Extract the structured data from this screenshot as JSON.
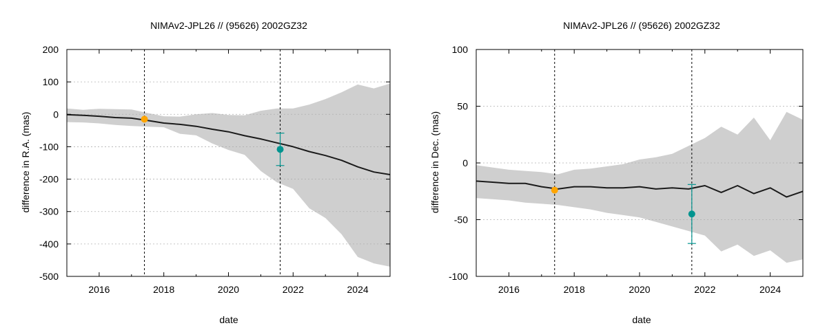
{
  "chart_data": [
    {
      "type": "line",
      "title": "NIMAv2-JPL26 // (95626) 2002GZ32",
      "xlabel": "date",
      "ylabel": "difference in R.A. (mas)",
      "xlim": [
        2015,
        2025
      ],
      "ylim": [
        -500,
        200
      ],
      "xticks": [
        2016,
        2018,
        2020,
        2022,
        2024
      ],
      "yticks": [
        -500,
        -400,
        -300,
        -200,
        -100,
        0,
        100,
        200
      ],
      "grid": true,
      "vlines": [
        2017.4,
        2021.6
      ],
      "series": [
        {
          "name": "nominal difference",
          "x": [
            2015.0,
            2015.5,
            2016.0,
            2016.5,
            2017.0,
            2017.5,
            2018.0,
            2018.5,
            2019.0,
            2019.5,
            2020.0,
            2020.5,
            2021.0,
            2021.5,
            2022.0,
            2022.5,
            2023.0,
            2023.5,
            2024.0,
            2024.5,
            2025.0
          ],
          "y": [
            -1,
            -3,
            -6,
            -10,
            -12,
            -19,
            -27,
            -31,
            -37,
            -46,
            -54,
            -66,
            -76,
            -88,
            -100,
            -115,
            -127,
            -142,
            -162,
            -178,
            -186
          ]
        },
        {
          "name": "uncertainty upper",
          "x": [
            2015.0,
            2015.5,
            2016.0,
            2016.5,
            2017.0,
            2017.5,
            2018.0,
            2018.5,
            2019.0,
            2019.5,
            2020.0,
            2020.5,
            2021.0,
            2021.5,
            2022.0,
            2022.5,
            2023.0,
            2023.5,
            2024.0,
            2024.5,
            2025.0
          ],
          "y": [
            18,
            14,
            17,
            16,
            15,
            4,
            -6,
            -7,
            0,
            4,
            -2,
            -3,
            11,
            18,
            18,
            30,
            47,
            68,
            92,
            80,
            95
          ]
        },
        {
          "name": "uncertainty lower",
          "x": [
            2015.0,
            2015.5,
            2016.0,
            2016.5,
            2017.0,
            2017.5,
            2018.0,
            2018.5,
            2019.0,
            2019.5,
            2020.0,
            2020.5,
            2021.0,
            2021.5,
            2022.0,
            2022.5,
            2023.0,
            2023.5,
            2024.0,
            2024.5,
            2025.0
          ],
          "y": [
            -24,
            -25,
            -28,
            -33,
            -36,
            -38,
            -40,
            -60,
            -65,
            -90,
            -110,
            -125,
            -175,
            -210,
            -230,
            -290,
            -320,
            -370,
            -440,
            -460,
            -470
          ]
        }
      ],
      "points": [
        {
          "name": "orange observation",
          "x": 2017.4,
          "y": -15,
          "color": "#ffa500"
        },
        {
          "name": "teal observation",
          "x": 2021.6,
          "y": -108,
          "yerr": 50,
          "color": "#00948f"
        }
      ]
    },
    {
      "type": "line",
      "title": "NIMAv2-JPL26 // (95626) 2002GZ32",
      "xlabel": "date",
      "ylabel": "difference in Dec. (mas)",
      "xlim": [
        2015,
        2025
      ],
      "ylim": [
        -100,
        100
      ],
      "xticks": [
        2016,
        2018,
        2020,
        2022,
        2024
      ],
      "yticks": [
        -100,
        -50,
        0,
        50,
        100
      ],
      "grid": true,
      "vlines": [
        2017.4,
        2021.6
      ],
      "series": [
        {
          "name": "nominal difference",
          "x": [
            2015.0,
            2015.5,
            2016.0,
            2016.5,
            2017.0,
            2017.5,
            2018.0,
            2018.5,
            2019.0,
            2019.5,
            2020.0,
            2020.5,
            2021.0,
            2021.5,
            2022.0,
            2022.5,
            2023.0,
            2023.5,
            2024.0,
            2024.5,
            2025.0
          ],
          "y": [
            -16,
            -17,
            -18,
            -18,
            -21,
            -23,
            -21,
            -21,
            -22,
            -22,
            -21,
            -23,
            -22,
            -23,
            -20,
            -26,
            -20,
            -27,
            -22,
            -30,
            -25
          ]
        },
        {
          "name": "uncertainty upper",
          "x": [
            2015.0,
            2015.5,
            2016.0,
            2016.5,
            2017.0,
            2017.5,
            2018.0,
            2018.5,
            2019.0,
            2019.5,
            2020.0,
            2020.5,
            2021.0,
            2021.5,
            2022.0,
            2022.5,
            2023.0,
            2023.5,
            2024.0,
            2024.5,
            2025.0
          ],
          "y": [
            -2,
            -4,
            -6,
            -7,
            -8,
            -10,
            -6,
            -5,
            -3,
            -1,
            3,
            5,
            8,
            15,
            22,
            32,
            25,
            40,
            20,
            45,
            38
          ]
        },
        {
          "name": "uncertainty lower",
          "x": [
            2015.0,
            2015.5,
            2016.0,
            2016.5,
            2017.0,
            2017.5,
            2018.0,
            2018.5,
            2019.0,
            2019.5,
            2020.0,
            2020.5,
            2021.0,
            2021.5,
            2022.0,
            2022.5,
            2023.0,
            2023.5,
            2024.0,
            2024.5,
            2025.0
          ],
          "y": [
            -31,
            -32,
            -33,
            -35,
            -36,
            -37,
            -39,
            -41,
            -44,
            -46,
            -48,
            -52,
            -56,
            -60,
            -64,
            -78,
            -72,
            -82,
            -77,
            -88,
            -85
          ]
        }
      ],
      "points": [
        {
          "name": "orange observation",
          "x": 2017.4,
          "y": -24,
          "color": "#ffa500"
        },
        {
          "name": "teal observation",
          "x": 2021.6,
          "y": -45,
          "yerr": 26,
          "color": "#00948f"
        }
      ]
    }
  ]
}
